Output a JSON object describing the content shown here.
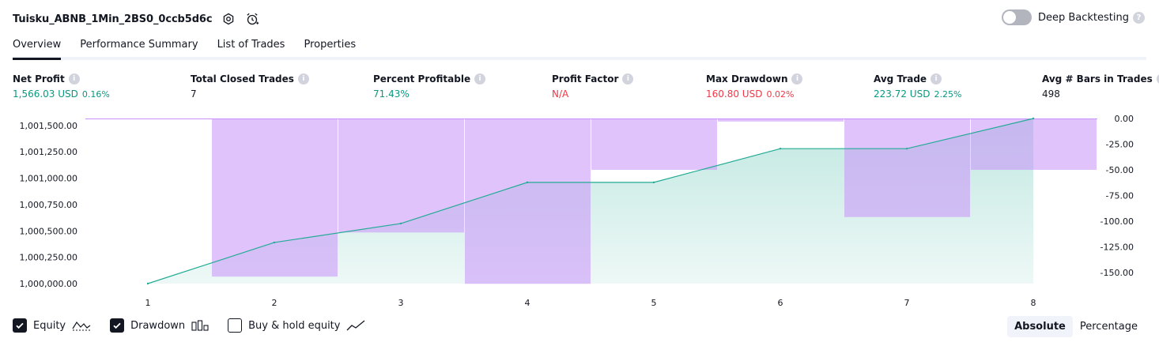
{
  "header": {
    "title": "Tuisku_ABNB_1Min_2BS0_0ccb5d6c",
    "deep_backtesting_label": "Deep Backtesting",
    "deep_backtesting_enabled": false,
    "help_glyph": "?"
  },
  "tabs": [
    {
      "label": "Overview",
      "active": true
    },
    {
      "label": "Performance Summary",
      "active": false
    },
    {
      "label": "List of Trades",
      "active": false
    },
    {
      "label": "Properties",
      "active": false
    }
  ],
  "metrics": [
    {
      "label": "Net Profit",
      "value": "1,566.03 USD",
      "sub": "0.16%",
      "tone": "pos"
    },
    {
      "label": "Total Closed Trades",
      "value": "7",
      "sub": "",
      "tone": "neutral"
    },
    {
      "label": "Percent Profitable",
      "value": "71.43%",
      "sub": "",
      "tone": "pos"
    },
    {
      "label": "Profit Factor",
      "value": "N/A",
      "sub": "",
      "tone": "neg"
    },
    {
      "label": "Max Drawdown",
      "value": "160.80 USD",
      "sub": "0.02%",
      "tone": "neg"
    },
    {
      "label": "Avg Trade",
      "value": "223.72 USD",
      "sub": "2.25%",
      "tone": "pos"
    },
    {
      "label": "Avg # Bars in Trades",
      "value": "498",
      "sub": "",
      "tone": "neutral"
    }
  ],
  "chart_data": {
    "type": "line",
    "x": [
      1,
      2,
      3,
      4,
      5,
      6,
      7,
      8
    ],
    "series": [
      {
        "name": "Equity",
        "axis": "left",
        "values": [
          1000000,
          1000390,
          1000570,
          1000960,
          1000960,
          1001280,
          1001280,
          1001566.03
        ],
        "color": "#22ab94"
      },
      {
        "name": "Drawdown",
        "axis": "right",
        "type": "bar",
        "values": [
          0,
          -154,
          -111,
          -161,
          -50,
          -3,
          -96,
          -50
        ],
        "color": "#c992fa"
      }
    ],
    "left_axis": {
      "ticks": [
        "1,001,500.00",
        "1,001,250.00",
        "1,001,000.00",
        "1,000,750.00",
        "1,000,500.00",
        "1,000,250.00",
        "1,000,000.00"
      ],
      "range": [
        1000000,
        1001566.03
      ]
    },
    "right_axis": {
      "ticks": [
        "0.00",
        "-25.00",
        "-50.00",
        "-75.00",
        "-100.00",
        "-125.00",
        "-150.00"
      ],
      "range": [
        -160.8,
        0
      ]
    },
    "x_ticks": [
      "1",
      "2",
      "3",
      "4",
      "5",
      "6",
      "7",
      "8"
    ]
  },
  "legend": {
    "equity_label": "Equity",
    "equity_checked": true,
    "drawdown_label": "Drawdown",
    "drawdown_checked": true,
    "buyhold_label": "Buy & hold equity",
    "buyhold_checked": false
  },
  "mode": {
    "absolute_label": "Absolute",
    "percentage_label": "Percentage",
    "active": "absolute"
  },
  "colors": {
    "positive": "#089981",
    "negative": "#f23645",
    "equity_line": "#22ab94",
    "drawdown_fill": "#c992fa"
  }
}
